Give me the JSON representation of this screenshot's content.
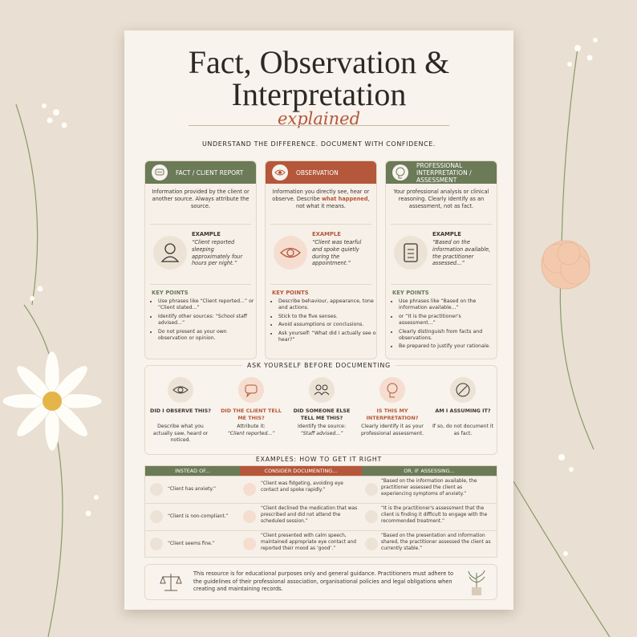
{
  "header": {
    "title_lines": [
      "Fact, Observation &",
      "Interpretation"
    ],
    "subtitle": "explained",
    "tagline": "UNDERSTAND THE DIFFERENCE. DOCUMENT WITH CONFIDENCE."
  },
  "columns": [
    {
      "heading": "FACT / CLIENT REPORT",
      "description": "Information provided by the client or another source. Always attribute the source.",
      "example_label": "EXAMPLE",
      "example": "“Client reported sleeping approximately four hours per night.”",
      "key_points_label": "KEY POINTS",
      "points": [
        "Use phrases like “Client reported...” or “Client stated...”",
        "Identify other sources: “School staff advised...”",
        "Do not present as your own observation or opinion."
      ]
    },
    {
      "heading": "OBSERVATION",
      "description_start": "Information you directly see, hear or observe. Describe",
      "highlight": "what happened",
      "description_end": ", not what it means.",
      "example_label": "EXAMPLE",
      "example": "“Client was tearful and spoke quietly during the appointment.”",
      "key_points_label": "KEY POINTS",
      "points": [
        "Describe behaviour, appearance, tone and actions.",
        "Stick to the five senses.",
        "Avoid assumptions or conclusions.",
        "Ask yourself: “What did I actually see or hear?”"
      ]
    },
    {
      "heading": "PROFESSIONAL INTERPRETATION / ASSESSMENT",
      "description": "Your professional analysis or clinical reasoning. Clearly identify as an assessment, not as fact.",
      "example_label": "EXAMPLE",
      "example": "“Based on the information available, the practitioner assessed...”",
      "key_points_label": "KEY POINTS",
      "points": [
        "Use phrases like “Based on the information available...”",
        "or “It is the practitioner's assessment...”",
        "Clearly distinguish from facts and observations.",
        "Be prepared to justify your rationale."
      ]
    }
  ],
  "ask": {
    "title": "ASK YOURSELF BEFORE DOCUMENTING",
    "items": [
      {
        "question": "DID I OBSERVE THIS?",
        "answer": "Describe what you actually saw, heard or noticed."
      },
      {
        "question": "DID THE CLIENT TELL ME THIS?",
        "answer": "Attribute it:",
        "quote": "“Client reported...”"
      },
      {
        "question": "DID SOMEONE ELSE TELL ME THIS?",
        "answer": "Identify the source:",
        "quote": "“Staff advised...”"
      },
      {
        "question": "IS THIS MY INTERPRETATION?",
        "answer": "Clearly identify it as your professional assessment."
      },
      {
        "question": "AM I ASSUMING IT?",
        "answer": "If so, do not document it as fact."
      }
    ]
  },
  "examples": {
    "title": "EXAMPLES: HOW TO GET IT RIGHT",
    "headers": [
      "INSTEAD OF...",
      "CONSIDER DOCUMENTING...",
      "OR, IF ASSESSING..."
    ],
    "rows": [
      [
        "“Client has anxiety.”",
        "“Client was fidgeting, avoiding eye contact and spoke rapidly.”",
        "“Based on the information available, the practitioner assessed the client as experiencing symptoms of anxiety.”"
      ],
      [
        "“Client is non-compliant.”",
        "“Client declined the medication that was prescribed and did not attend the scheduled session.”",
        "“It is the practitioner's assessment that the client is finding it difficult to engage with the recommended treatment.”"
      ],
      [
        "“Client seems fine.”",
        "“Client presented with calm speech, maintained appropriate eye contact and reported their mood as ‘good’.”",
        "“Based on the presentation and information shared, the practitioner assessed the client as currently stable.”"
      ]
    ]
  },
  "footer": {
    "text": "This resource is for educational purposes only and general guidance. Practitioners must adhere to the guidelines of their professional association, organisational policies and legal obligations when creating and maintaining records."
  }
}
